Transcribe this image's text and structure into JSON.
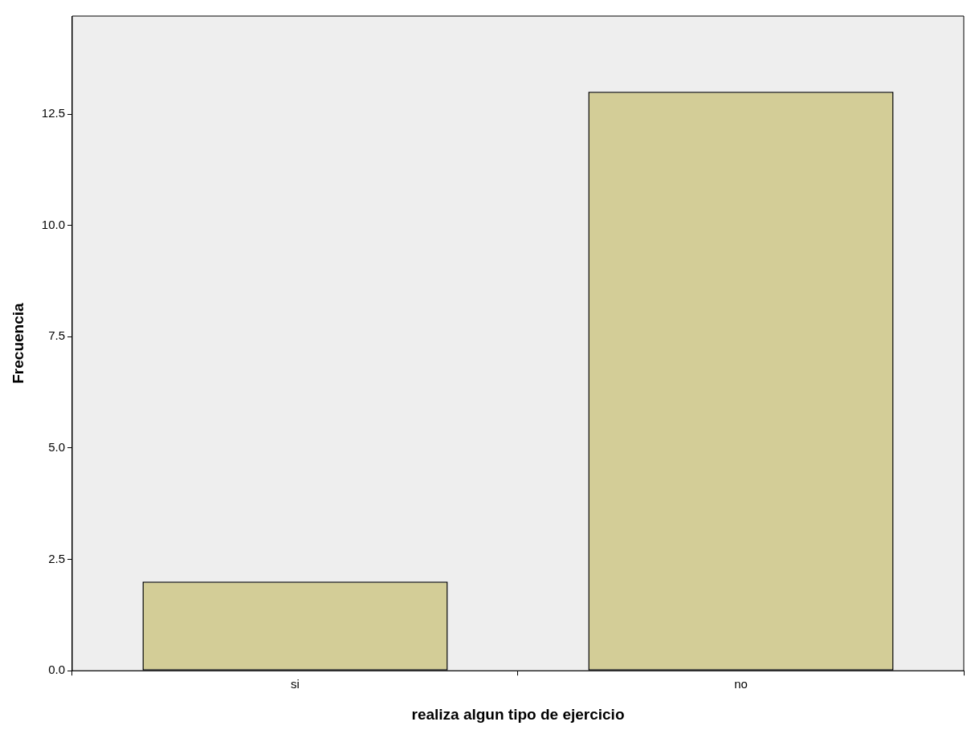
{
  "chart_data": {
    "type": "bar",
    "xlabel": "realiza algun tipo de ejercicio",
    "ylabel": "Frecuencia",
    "categories": [
      "si",
      "no"
    ],
    "values": [
      2,
      13
    ],
    "color": "#d3cd97",
    "ylim": [
      0,
      14.7
    ],
    "yticks": [
      {
        "value": 0,
        "label": "0.0"
      },
      {
        "value": 2.5,
        "label": "2.5"
      },
      {
        "value": 5,
        "label": "5.0"
      },
      {
        "value": 7.5,
        "label": "7.5"
      },
      {
        "value": 10,
        "label": "10.0"
      },
      {
        "value": 12.5,
        "label": "12.5"
      }
    ],
    "grid": false,
    "legend": false
  }
}
